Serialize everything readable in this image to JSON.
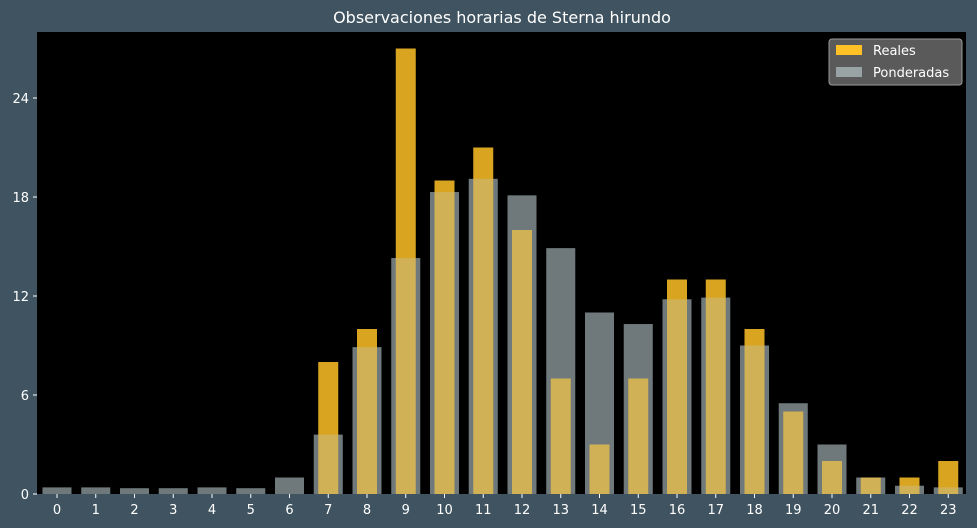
{
  "chart_data": {
    "type": "bar",
    "title": "Observaciones horarias de Sterna hirundo",
    "xlabel": "",
    "ylabel": "",
    "categories": [
      "0",
      "1",
      "2",
      "3",
      "4",
      "5",
      "6",
      "7",
      "8",
      "9",
      "10",
      "11",
      "12",
      "13",
      "14",
      "15",
      "16",
      "17",
      "18",
      "19",
      "20",
      "21",
      "22",
      "23"
    ],
    "ylim": [
      0,
      28
    ],
    "yticks": [
      0,
      6,
      12,
      18,
      24
    ],
    "grid": false,
    "legend_position": "top-right",
    "series": [
      {
        "name": "Reales",
        "color": "#ffc125",
        "values": [
          0,
          0,
          0,
          0,
          0,
          0,
          0,
          8,
          10,
          27,
          19,
          21,
          16,
          7,
          3,
          7,
          13,
          13,
          10,
          5,
          2,
          1,
          1,
          2
        ]
      },
      {
        "name": "Ponderadas",
        "color": "#a3b0b3",
        "values": [
          0.4,
          0.4,
          0.35,
          0.35,
          0.4,
          0.35,
          1.0,
          3.6,
          8.9,
          14.3,
          18.3,
          19.1,
          18.1,
          14.9,
          11.0,
          10.3,
          11.8,
          11.9,
          9.0,
          5.5,
          3.0,
          1.0,
          0.5,
          0.4
        ]
      }
    ]
  }
}
